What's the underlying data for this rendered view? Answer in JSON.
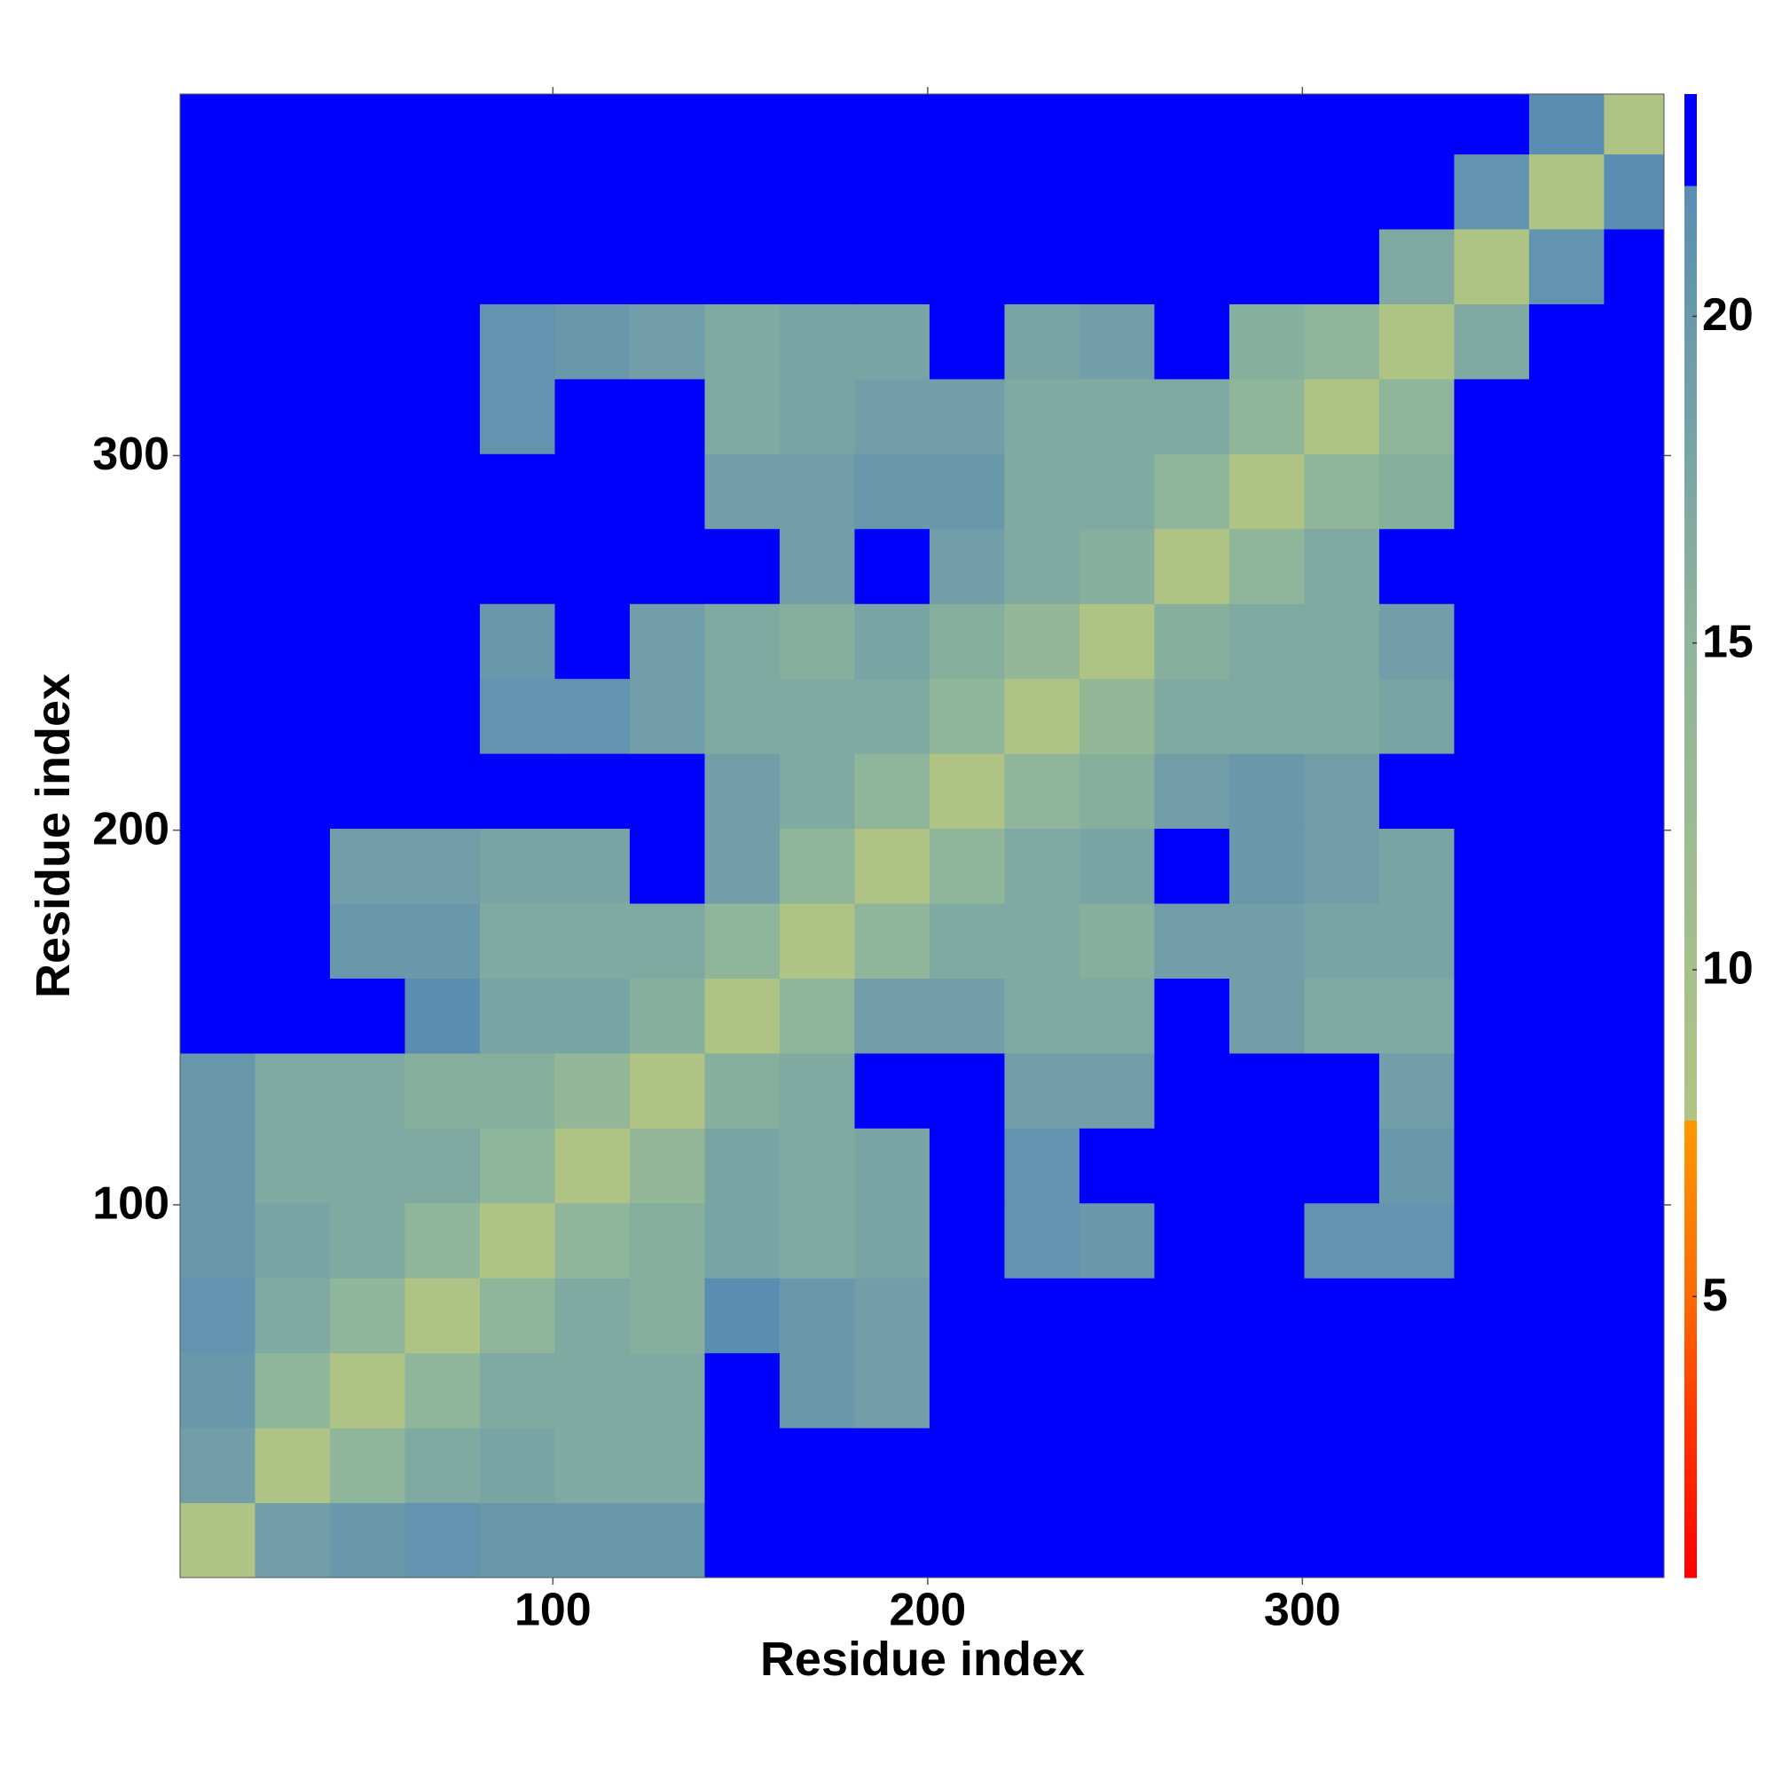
{
  "chart_data": {
    "type": "heatmap",
    "xlabel": "Residue index",
    "ylabel": "Residue index",
    "x": [
      0.5,
      20.5,
      40.5,
      60.5,
      80.5,
      100.5,
      120.5,
      140.5,
      160.5,
      180.5,
      200.5,
      220.5,
      240.5,
      260.5,
      280.5,
      300.5,
      320.5,
      340.5,
      360.5,
      380.5,
      396.5
    ],
    "y": [
      0.5,
      20.5,
      40.5,
      60.5,
      80.5,
      100.5,
      120.5,
      140.5,
      160.5,
      180.5,
      200.5,
      220.5,
      240.5,
      260.5,
      280.5,
      300.5,
      320.5,
      340.5,
      360.5,
      380.5,
      396.5
    ],
    "z": [
      [
        8,
        19,
        20,
        21,
        20,
        20,
        20,
        23,
        23,
        23,
        23,
        23,
        23,
        23,
        23,
        23,
        23,
        23,
        23,
        23
      ],
      [
        19,
        8,
        15,
        17,
        18,
        17,
        17,
        23,
        23,
        23,
        23,
        23,
        23,
        23,
        23,
        23,
        23,
        23,
        23,
        23
      ],
      [
        20,
        15,
        8,
        15,
        17,
        17,
        17,
        23,
        20,
        19,
        23,
        23,
        23,
        23,
        23,
        23,
        23,
        23,
        23,
        23
      ],
      [
        21,
        17,
        15,
        8,
        15,
        17,
        16,
        22,
        20,
        19,
        23,
        23,
        23,
        23,
        23,
        23,
        23,
        23,
        23,
        23
      ],
      [
        20,
        18,
        17,
        15,
        8,
        15,
        16,
        18,
        17,
        18,
        23,
        21,
        20,
        23,
        23,
        21,
        21,
        23,
        23,
        23
      ],
      [
        20,
        17,
        17,
        17,
        15,
        8,
        14,
        18,
        17,
        18,
        23,
        21,
        23,
        23,
        23,
        23,
        20,
        23,
        23,
        23
      ],
      [
        20,
        17,
        17,
        16,
        16,
        14,
        8,
        16,
        17,
        23,
        23,
        19,
        19,
        23,
        23,
        23,
        19,
        23,
        23,
        23
      ],
      [
        23,
        23,
        23,
        22,
        18,
        18,
        16,
        8,
        15,
        19,
        19,
        17,
        17,
        23,
        19,
        17,
        17,
        23,
        23,
        23
      ],
      [
        23,
        23,
        20,
        20,
        17,
        17,
        17,
        15,
        8,
        15,
        17,
        17,
        16,
        19,
        19,
        18,
        18,
        23,
        23,
        23
      ],
      [
        23,
        23,
        19,
        19,
        18,
        18,
        23,
        19,
        15,
        8,
        15,
        17,
        18,
        23,
        20,
        19,
        18,
        23,
        23,
        23
      ],
      [
        23,
        23,
        23,
        23,
        23,
        23,
        23,
        19,
        17,
        15,
        8,
        15,
        16,
        19,
        20,
        19,
        23,
        23,
        23,
        23
      ],
      [
        23,
        23,
        23,
        23,
        21,
        21,
        19,
        17,
        17,
        17,
        15,
        8,
        14,
        17,
        17,
        17,
        18,
        23,
        23,
        23
      ],
      [
        23,
        23,
        23,
        23,
        20,
        23,
        19,
        17,
        16,
        18,
        16,
        14,
        8,
        16,
        17,
        17,
        19,
        23,
        23,
        23
      ],
      [
        23,
        23,
        23,
        23,
        23,
        23,
        23,
        23,
        19,
        23,
        19,
        17,
        16,
        8,
        15,
        17,
        23,
        23,
        23,
        23
      ],
      [
        23,
        23,
        23,
        23,
        23,
        23,
        23,
        19,
        19,
        20,
        20,
        17,
        17,
        15,
        8,
        15,
        16,
        23,
        23,
        23
      ],
      [
        23,
        23,
        23,
        23,
        21,
        23,
        23,
        17,
        18,
        19,
        19,
        17,
        17,
        17,
        15,
        8,
        15,
        23,
        23,
        23
      ],
      [
        23,
        23,
        23,
        23,
        21,
        20,
        19,
        17,
        18,
        18,
        23,
        18,
        19,
        23,
        16,
        15,
        8,
        17,
        23,
        23
      ],
      [
        23,
        23,
        23,
        23,
        23,
        23,
        23,
        23,
        23,
        23,
        23,
        23,
        23,
        23,
        23,
        23,
        17,
        8,
        21,
        23
      ],
      [
        23,
        23,
        23,
        23,
        23,
        23,
        23,
        23,
        23,
        23,
        23,
        23,
        23,
        23,
        23,
        23,
        23,
        21,
        8,
        22
      ],
      [
        23,
        23,
        23,
        23,
        23,
        23,
        23,
        23,
        23,
        23,
        23,
        23,
        23,
        23,
        23,
        23,
        23,
        23,
        22,
        8
      ]
    ],
    "xlim": [
      0.5,
      396.5
    ],
    "ylim": [
      0.5,
      396.5
    ],
    "xticks": [
      100,
      200,
      300
    ],
    "yticks": [
      100,
      200,
      300
    ],
    "colorbar": {
      "lim": [
        0.7,
        23.4
      ],
      "ticks": [
        5,
        10,
        15,
        20
      ]
    },
    "colorscale": [
      [
        0.7,
        "#ff0000"
      ],
      [
        3,
        "#ff3300"
      ],
      [
        5,
        "#ff6a00"
      ],
      [
        7.7,
        "#ff9900"
      ],
      [
        7.7,
        "#b0c484"
      ],
      [
        15,
        "#8fb59a"
      ],
      [
        22,
        "#5a8db2"
      ],
      [
        22,
        "#0000ff"
      ],
      [
        23.4,
        "#0000ff"
      ]
    ]
  }
}
